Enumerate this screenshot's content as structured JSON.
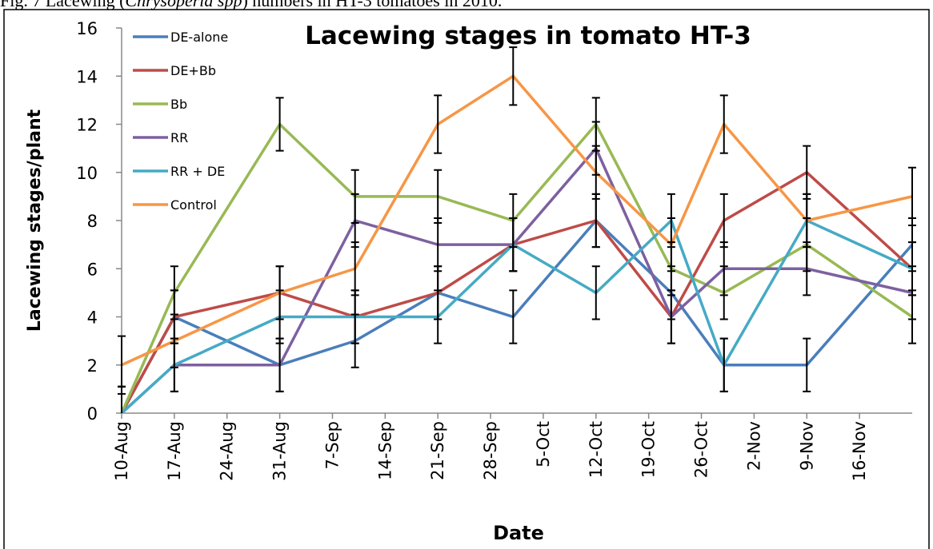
{
  "caption": {
    "before": "Fig. 7 Lacewing (",
    "italic": "Chrysoperla spp",
    "after": ") numbers in HT-3 tomatoes in 2010."
  },
  "chart_data": {
    "type": "line",
    "title": "Lacewing stages in tomato  HT-3",
    "x_label": "Date",
    "y_label": "Lacewing stages/plant",
    "x": [
      "10-Aug",
      "17-Aug",
      "31-Aug",
      "10-Sep",
      "21-Sep",
      "1-Oct",
      "12-Oct",
      "22-Oct",
      "29-Oct",
      "9-Nov",
      "23-Nov"
    ],
    "xlim": [
      "10-Aug",
      "23-Nov"
    ],
    "xticks": [
      "10-Aug",
      "17-Aug",
      "24-Aug",
      "31-Aug",
      "7-Sep",
      "14-Sep",
      "21-Sep",
      "28-Sep",
      "5-Oct",
      "12-Oct",
      "19-Oct",
      "26-Oct",
      "2-Nov",
      "9-Nov",
      "16-Nov"
    ],
    "ylim": [
      0,
      16
    ],
    "yticks": [
      0,
      2,
      4,
      6,
      8,
      10,
      12,
      14,
      16
    ],
    "legend": "top-left",
    "error_color": "#000000",
    "series": [
      {
        "name": "DE-alone",
        "color": "#4a7ebb",
        "values": [
          0,
          4,
          2,
          3,
          5,
          4,
          8,
          5,
          2,
          2,
          7
        ],
        "errors": [
          1.1,
          1.1,
          1.1,
          1.1,
          1.1,
          1.1,
          1.1,
          1.1,
          1.1,
          1.1,
          1.1
        ]
      },
      {
        "name": "DE+Bb",
        "color": "#be4b48",
        "values": [
          0,
          4,
          5,
          4,
          5,
          7,
          8,
          4,
          8,
          10,
          6
        ],
        "errors": [
          1.1,
          1.1,
          1.1,
          1.1,
          1.1,
          1.1,
          1.1,
          1.1,
          1.1,
          1.1,
          1.1
        ]
      },
      {
        "name": "Bb",
        "color": "#98b954",
        "values": [
          0,
          5,
          12,
          9,
          9,
          8,
          12,
          6,
          5,
          7,
          4
        ],
        "errors": [
          1.1,
          1.1,
          1.1,
          1.1,
          1.1,
          1.1,
          1.1,
          1.1,
          1.1,
          1.1,
          1.1
        ]
      },
      {
        "name": "RR",
        "color": "#7d60a0",
        "values": [
          0,
          2,
          2,
          8,
          7,
          7,
          11,
          4,
          6,
          6,
          5
        ],
        "errors": [
          1.1,
          1.1,
          1.1,
          1.1,
          1.1,
          1.1,
          1.1,
          1.1,
          1.1,
          1.1,
          1.1
        ]
      },
      {
        "name": "RR + DE",
        "color": "#46aac5",
        "values": [
          0,
          2,
          4,
          4,
          4,
          7,
          5,
          8,
          2,
          8,
          6
        ],
        "errors": [
          1.1,
          1.1,
          1.1,
          1.1,
          1.1,
          1.1,
          1.1,
          1.1,
          1.1,
          1.1,
          1.1
        ]
      },
      {
        "name": "Control",
        "color": "#f79646",
        "values": [
          2,
          3,
          5,
          6,
          12,
          14,
          10,
          7,
          12,
          8,
          9
        ],
        "errors": [
          1.2,
          1.1,
          1.1,
          1.1,
          1.2,
          1.2,
          1.1,
          1.1,
          1.2,
          1.1,
          1.2
        ]
      }
    ]
  }
}
